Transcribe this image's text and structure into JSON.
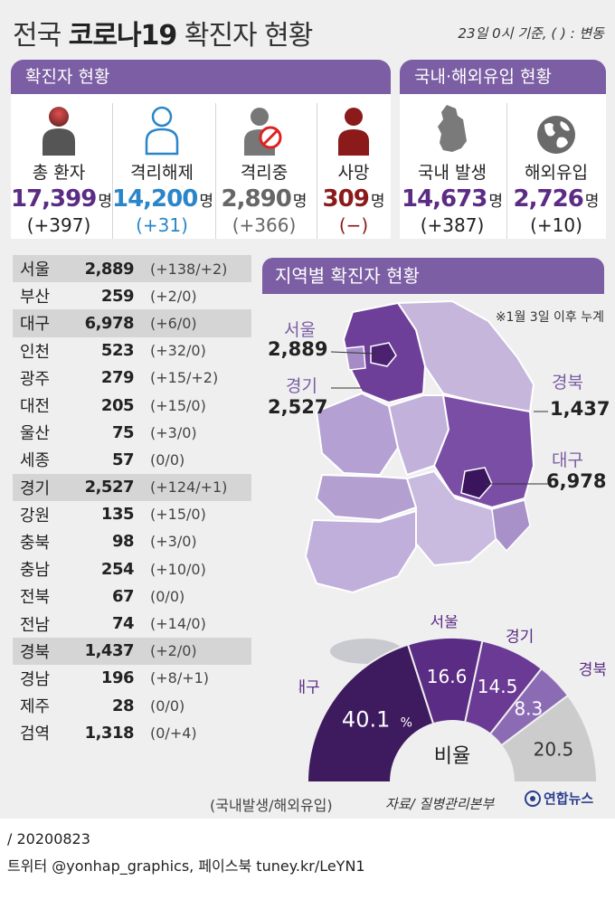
{
  "header": {
    "title_prefix": "전국 ",
    "title_bold": "코로나19",
    "title_suffix": " 확진자 현황",
    "basis": "23일 0시 기준, ( ) : 변동"
  },
  "overview": {
    "title": "확진자 현황",
    "items": [
      {
        "label": "총 환자",
        "value": "17,399",
        "unit": "명",
        "change": "(+397)",
        "color": "#5b2c83",
        "change_color": "#222222",
        "icon": "patient-icon"
      },
      {
        "label": "격리해제",
        "value": "14,200",
        "unit": "명",
        "change": "(+31)",
        "color": "#2a86c8",
        "change_color": "#2a86c8",
        "icon": "released-person-icon"
      },
      {
        "label": "격리중",
        "value": "2,890",
        "unit": "명",
        "change": "(+366)",
        "color": "#666666",
        "change_color": "#666666",
        "icon": "isolated-person-icon"
      },
      {
        "label": "사망",
        "value": "309",
        "unit": "명",
        "change": "(−)",
        "color": "#8b1a1a",
        "change_color": "#8b1a1a",
        "icon": "deceased-person-icon"
      }
    ]
  },
  "origin": {
    "title": "국내·해외유입 현황",
    "items": [
      {
        "label": "국내 발생",
        "value": "14,673",
        "unit": "명",
        "change": "(+387)",
        "color": "#5b2c83",
        "icon": "korea-map-icon"
      },
      {
        "label": "해외유입",
        "value": "2,726",
        "unit": "명",
        "change": "(+10)",
        "color": "#5b2c83",
        "icon": "globe-icon"
      }
    ]
  },
  "regions": [
    {
      "name": "서울",
      "value": "2,889",
      "change": "(+138/+2)"
    },
    {
      "name": "부산",
      "value": "259",
      "change": "(+2/0)"
    },
    {
      "name": "대구",
      "value": "6,978",
      "change": "(+6/0)"
    },
    {
      "name": "인천",
      "value": "523",
      "change": "(+32/0)"
    },
    {
      "name": "광주",
      "value": "279",
      "change": "(+15/+2)"
    },
    {
      "name": "대전",
      "value": "205",
      "change": "(+15/0)"
    },
    {
      "name": "울산",
      "value": "75",
      "change": "(+3/0)"
    },
    {
      "name": "세종",
      "value": "57",
      "change": "(0/0)"
    },
    {
      "name": "경기",
      "value": "2,527",
      "change": "(+124/+1)"
    },
    {
      "name": "강원",
      "value": "135",
      "change": "(+15/0)"
    },
    {
      "name": "충북",
      "value": "98",
      "change": "(+3/0)"
    },
    {
      "name": "충남",
      "value": "254",
      "change": "(+10/0)"
    },
    {
      "name": "전북",
      "value": "67",
      "change": "(0/0)"
    },
    {
      "name": "전남",
      "value": "74",
      "change": "(+14/0)"
    },
    {
      "name": "경북",
      "value": "1,437",
      "change": "(+2/0)"
    },
    {
      "name": "경남",
      "value": "196",
      "change": "(+8/+1)"
    },
    {
      "name": "제주",
      "value": "28",
      "change": "(0/0)"
    },
    {
      "name": "검역",
      "value": "1,318",
      "change": "(0/+4)"
    }
  ],
  "test_note": "(국내발생/해외유입)",
  "map": {
    "title": "지역별 확진자 현황",
    "note": "※1월 3일 이후 누계",
    "callouts": [
      {
        "name": "서울",
        "value": "2,889"
      },
      {
        "name": "경기",
        "value": "2,527"
      },
      {
        "name": "경북",
        "value": "1,437"
      },
      {
        "name": "대구",
        "value": "6,978"
      }
    ]
  },
  "chart_data": {
    "type": "pie",
    "title": "",
    "center_label": "비율",
    "unit": "%",
    "slices": [
      {
        "name": "대구",
        "value": 40.1,
        "color": "#3e1a5e"
      },
      {
        "name": "서울",
        "value": 16.6,
        "color": "#5b2c83"
      },
      {
        "name": "경기",
        "value": 14.5,
        "color": "#6a3a94"
      },
      {
        "name": "경북",
        "value": 8.3,
        "color": "#8c6bb5"
      },
      {
        "name": "",
        "value": 20.5,
        "color": "#cccccc"
      }
    ]
  },
  "footer": {
    "source": "자료/ 질병관리본부",
    "brand": "연합뉴스",
    "date": "/ 20200823",
    "credit": "트위터 @yonhap_graphics, 페이스북 tuney.kr/LeYN1"
  }
}
